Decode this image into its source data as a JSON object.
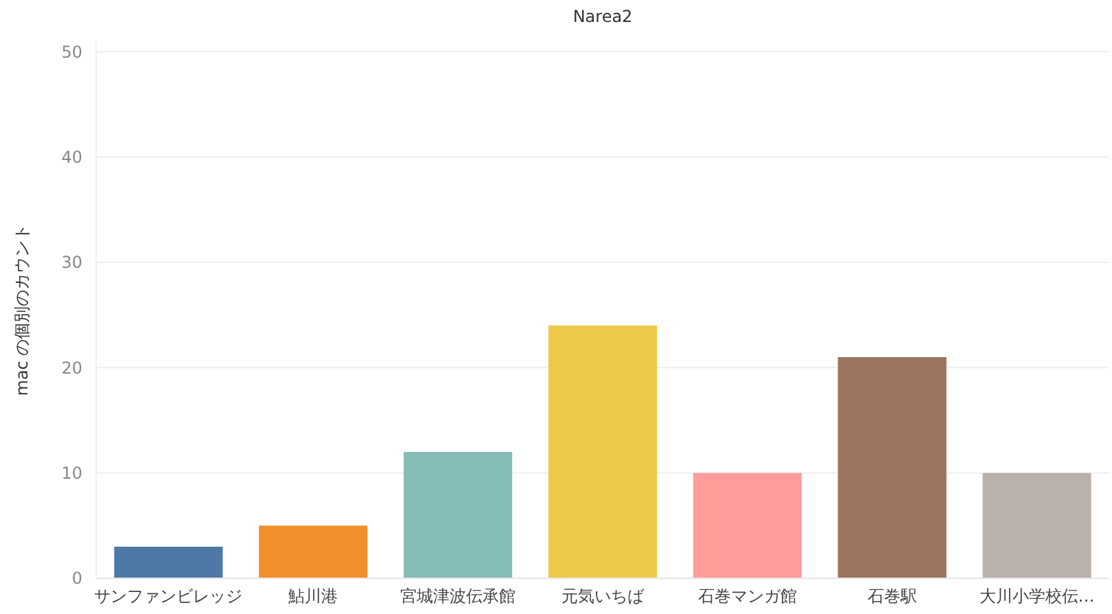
{
  "chart_data": {
    "type": "bar",
    "title": "Narea2",
    "ylabel": "mac の個別のカウント",
    "categories": [
      "サンファンビレッジ",
      "鮎川港",
      "宮城津波伝承館",
      "元気いちば",
      "石巻マンガ館",
      "石巻駅",
      "大川小学校伝…"
    ],
    "values": [
      3,
      5,
      12,
      24,
      10,
      21,
      10
    ],
    "colors": [
      "#4e79a7",
      "#f28e2b",
      "#86bcb6",
      "#edc948",
      "#ff9d9a",
      "#9c755f",
      "#bab0ac"
    ],
    "ylim": [
      0,
      51
    ],
    "yticks": [
      0,
      10,
      20,
      30,
      40,
      50
    ],
    "grid": "y"
  }
}
